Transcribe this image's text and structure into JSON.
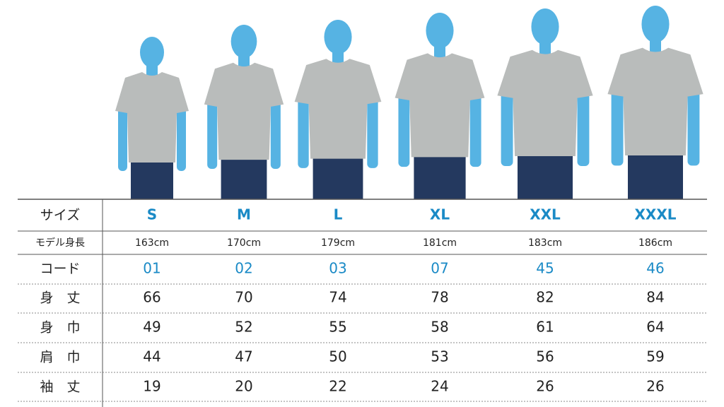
{
  "table": {
    "header": {
      "label": "サイズ",
      "sizes": [
        "S",
        "M",
        "L",
        "XL",
        "XXL",
        "XXXL"
      ]
    },
    "rows": [
      {
        "label": "モデル身長",
        "values": [
          "163cm",
          "170cm",
          "179cm",
          "181cm",
          "183cm",
          "186cm"
        ]
      },
      {
        "label": "コード",
        "values": [
          "01",
          "02",
          "03",
          "07",
          "45",
          "46"
        ]
      },
      {
        "label": "身　丈",
        "values": [
          66,
          70,
          74,
          78,
          82,
          84
        ]
      },
      {
        "label": "身　巾",
        "values": [
          49,
          52,
          55,
          58,
          61,
          64
        ]
      },
      {
        "label": "肩　巾",
        "values": [
          44,
          47,
          50,
          53,
          56,
          59
        ]
      },
      {
        "label": "袖　丈",
        "values": [
          19,
          20,
          22,
          24,
          26,
          26
        ]
      }
    ]
  }
}
